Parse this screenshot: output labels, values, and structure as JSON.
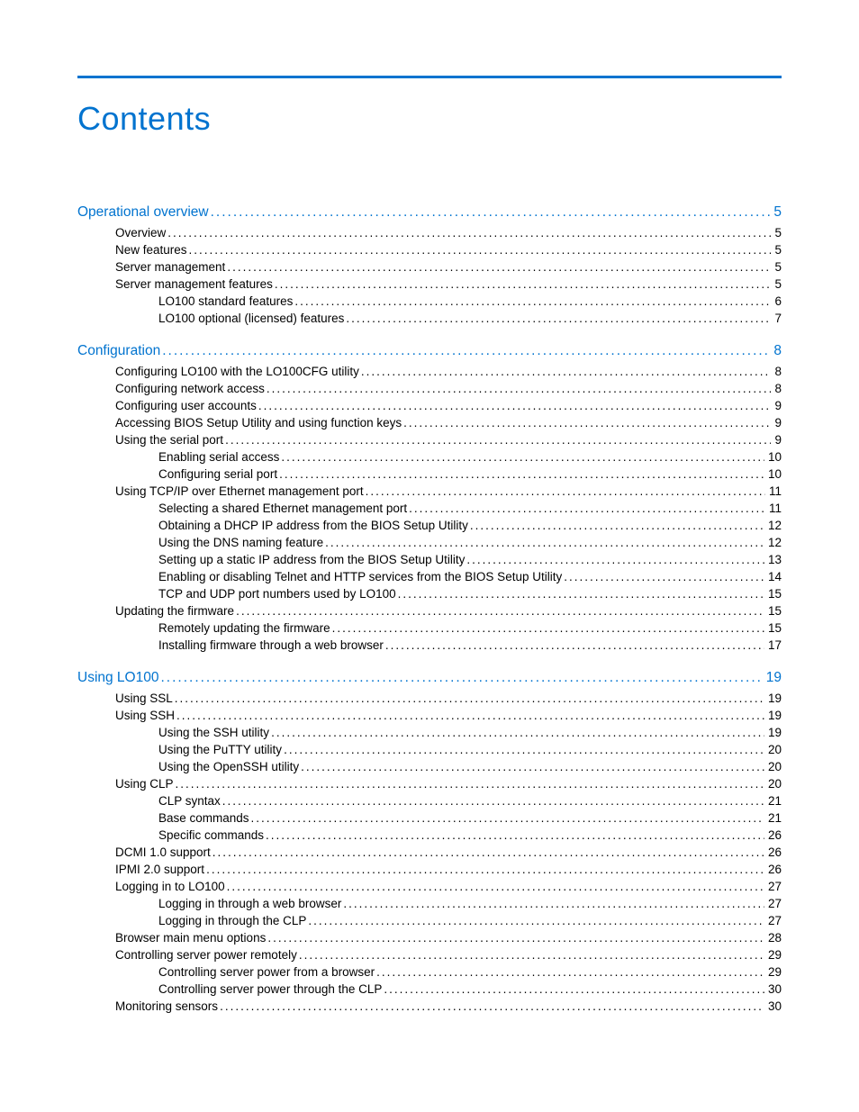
{
  "title": "Contents",
  "colors": {
    "accent": "#0073cf",
    "text": "#000000",
    "background": "#ffffff"
  },
  "sections": [
    {
      "heading": {
        "text": "Operational overview",
        "page": "5"
      },
      "entries": [
        {
          "level": 1,
          "text": "Overview",
          "page": "5"
        },
        {
          "level": 1,
          "text": "New features",
          "page": "5"
        },
        {
          "level": 1,
          "text": "Server management",
          "page": "5"
        },
        {
          "level": 1,
          "text": "Server management features",
          "page": "5"
        },
        {
          "level": 2,
          "text": "LO100 standard features",
          "page": "6"
        },
        {
          "level": 2,
          "text": "LO100 optional (licensed) features",
          "page": "7"
        }
      ]
    },
    {
      "heading": {
        "text": "Configuration",
        "page": "8"
      },
      "entries": [
        {
          "level": 1,
          "text": "Configuring  LO100 with the LO100CFG utility",
          "page": "8"
        },
        {
          "level": 1,
          "text": "Configuring network access",
          "page": "8"
        },
        {
          "level": 1,
          "text": "Configuring user accounts",
          "page": "9"
        },
        {
          "level": 1,
          "text": "Accessing BIOS Setup Utility and using function keys",
          "page": "9"
        },
        {
          "level": 1,
          "text": "Using the serial port",
          "page": "9"
        },
        {
          "level": 2,
          "text": "Enabling serial access",
          "page": "10"
        },
        {
          "level": 2,
          "text": "Configuring serial port",
          "page": "10"
        },
        {
          "level": 1,
          "text": "Using TCP/IP over Ethernet management port",
          "page": "11"
        },
        {
          "level": 2,
          "text": "Selecting a shared Ethernet management port",
          "page": "11"
        },
        {
          "level": 2,
          "text": "Obtaining a DHCP IP address from the BIOS Setup Utility",
          "page": "12"
        },
        {
          "level": 2,
          "text": "Using the DNS naming feature",
          "page": "12"
        },
        {
          "level": 2,
          "text": "Setting up a static IP address from the BIOS Setup Utility",
          "page": "13"
        },
        {
          "level": 2,
          "text": "Enabling or disabling Telnet and HTTP services from the BIOS Setup Utility",
          "page": "14"
        },
        {
          "level": 2,
          "text": "TCP and UDP port numbers used by LO100",
          "page": "15"
        },
        {
          "level": 1,
          "text": "Updating the firmware",
          "page": "15"
        },
        {
          "level": 2,
          "text": "Remotely updating the firmware",
          "page": "15"
        },
        {
          "level": 2,
          "text": "Installing firmware through a web browser",
          "page": "17"
        }
      ]
    },
    {
      "heading": {
        "text": "Using LO100",
        "page": "19"
      },
      "entries": [
        {
          "level": 1,
          "text": "Using SSL",
          "page": "19"
        },
        {
          "level": 1,
          "text": "Using SSH",
          "page": "19"
        },
        {
          "level": 2,
          "text": "Using the SSH utility",
          "page": "19"
        },
        {
          "level": 2,
          "text": "Using the PuTTY utility",
          "page": "20"
        },
        {
          "level": 2,
          "text": "Using the OpenSSH utility",
          "page": "20"
        },
        {
          "level": 1,
          "text": "Using CLP",
          "page": "20"
        },
        {
          "level": 2,
          "text": "CLP syntax",
          "page": "21"
        },
        {
          "level": 2,
          "text": "Base commands",
          "page": "21"
        },
        {
          "level": 2,
          "text": "Specific commands",
          "page": "26"
        },
        {
          "level": 1,
          "text": "DCMI 1.0 support",
          "page": "26"
        },
        {
          "level": 1,
          "text": "IPMI 2.0 support",
          "page": "26"
        },
        {
          "level": 1,
          "text": "Logging in to LO100",
          "page": "27"
        },
        {
          "level": 2,
          "text": "Logging in through a web browser",
          "page": "27"
        },
        {
          "level": 2,
          "text": "Logging in through the CLP",
          "page": "27"
        },
        {
          "level": 1,
          "text": "Browser main menu options",
          "page": "28"
        },
        {
          "level": 1,
          "text": "Controlling server power remotely",
          "page": "29"
        },
        {
          "level": 2,
          "text": "Controlling server power from a browser",
          "page": "29"
        },
        {
          "level": 2,
          "text": "Controlling server power through the CLP",
          "page": "30"
        },
        {
          "level": 1,
          "text": "Monitoring sensors",
          "page": "30"
        }
      ]
    }
  ]
}
